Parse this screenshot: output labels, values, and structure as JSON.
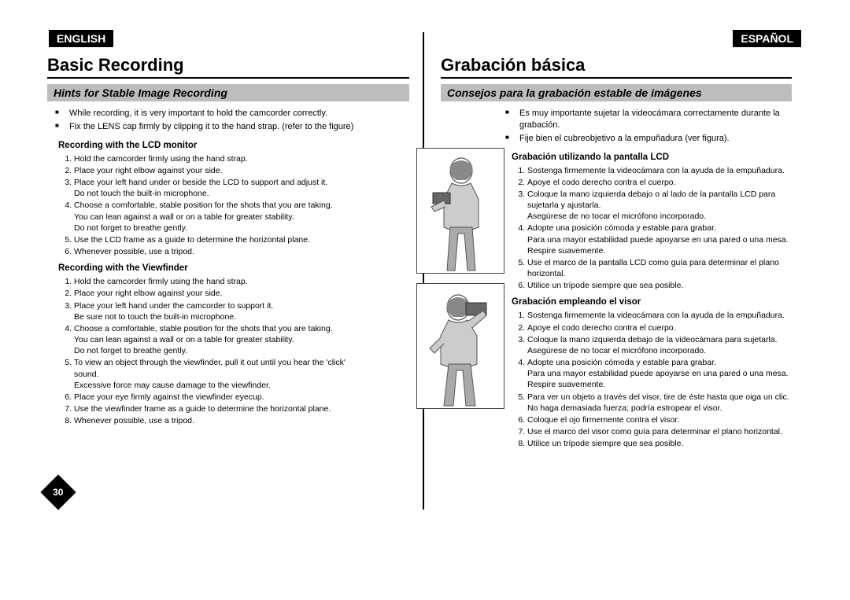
{
  "left": {
    "lang": "ENGLISH",
    "title": "Basic Recording",
    "subtitle": "Hints for Stable Image Recording",
    "bullets": [
      "While recording, it is very important to hold the camcorder correctly.",
      "Fix the LENS cap firmly by clipping it to the hand strap. (refer to the figure)"
    ],
    "sectA": {
      "head": "Recording with the LCD monitor",
      "steps": [
        "Hold the camcorder firmly using the hand strap.",
        "Place your right elbow against your side.",
        "Place your left hand under or beside the LCD to support and adjust it.\nDo not touch the built-in microphone.",
        "Choose a comfortable, stable position for the shots that you are taking.\nYou can lean against a wall or on a table for greater stability.\nDo not forget to breathe gently.",
        "Use the LCD frame as a guide to determine the horizontal plane.",
        "Whenever possible, use a tripod."
      ]
    },
    "sectB": {
      "head": "Recording with the Viewfinder",
      "steps": [
        "Hold the camcorder firmly using the hand strap.",
        "Place your right elbow against your side.",
        "Place your left hand under the camcorder to support it.\nBe sure not to touch the built-in microphone.",
        "Choose a comfortable, stable position for the shots that you are taking.\nYou can lean against a wall or on a table for greater stability.\nDo not forget to breathe gently.",
        "To view an object through the viewfinder, pull it out until you hear the 'click' sound.\nExcessive force may cause damage to the viewfinder.",
        "Place your eye firmly against the viewfinder eyecup.",
        "Use the viewfinder frame as a guide to determine the horizontal plane.",
        "Whenever possible, use a tripod."
      ]
    }
  },
  "right": {
    "lang": "ESPAÑOL",
    "title": "Grabación básica",
    "subtitle": "Consejos para la grabación estable de imágenes",
    "bullets": [
      "Es muy importante sujetar la videocámara correctamente durante la grabación.",
      "Fije bien el cubreobjetivo a la empuñadura (ver figura)."
    ],
    "sectA": {
      "head": "Grabación utilizando la pantalla LCD",
      "steps": [
        "Sostenga firmemente la videocámara con la ayuda de la empuñadura.",
        "Apoye el codo derecho contra el cuerpo.",
        "Coloque la mano izquierda debajo o al lado de la pantalla LCD para sujetarla y ajustarla.\nAsegúrese de no tocar el micrófono incorporado.",
        "Adopte una posición cómoda y estable para grabar.\nPara una mayor estabilidad puede apoyarse en una pared o una mesa.\nRespire suavemente.",
        "Use el marco de la pantalla LCD como guía para determinar el plano horizontal.",
        "Utilice un trípode siempre que sea posible."
      ]
    },
    "sectB": {
      "head": "Grabación empleando el visor",
      "steps": [
        "Sostenga firmemente la videocámara con la ayuda de la empuñadura.",
        "Apoye el codo derecho contra el cuerpo.",
        "Coloque la mano izquierda debajo de la videocámara para sujetarla.\nAsegúrese de no tocar el micrófono incorporado.",
        "Adopte una posición cómoda y estable para grabar.\nPara una mayor estabilidad puede apoyarse en una pared o una mesa.\nRespire suavemente.",
        "Para ver un objeto a través del visor, tire de éste hasta que oiga un clic.\nNo haga demasiada fuerza; podría estropear el visor.",
        "Coloque el ojo firmemente contra el visor.",
        "Use el marco del visor como guía para determinar el plano horizontal.",
        "Utilice un trípode siempre que sea posible."
      ]
    }
  },
  "page_number": "30",
  "colors": {
    "badge_bg": "#000000",
    "subtitle_bg": "#bdbdbd",
    "text": "#000000"
  }
}
